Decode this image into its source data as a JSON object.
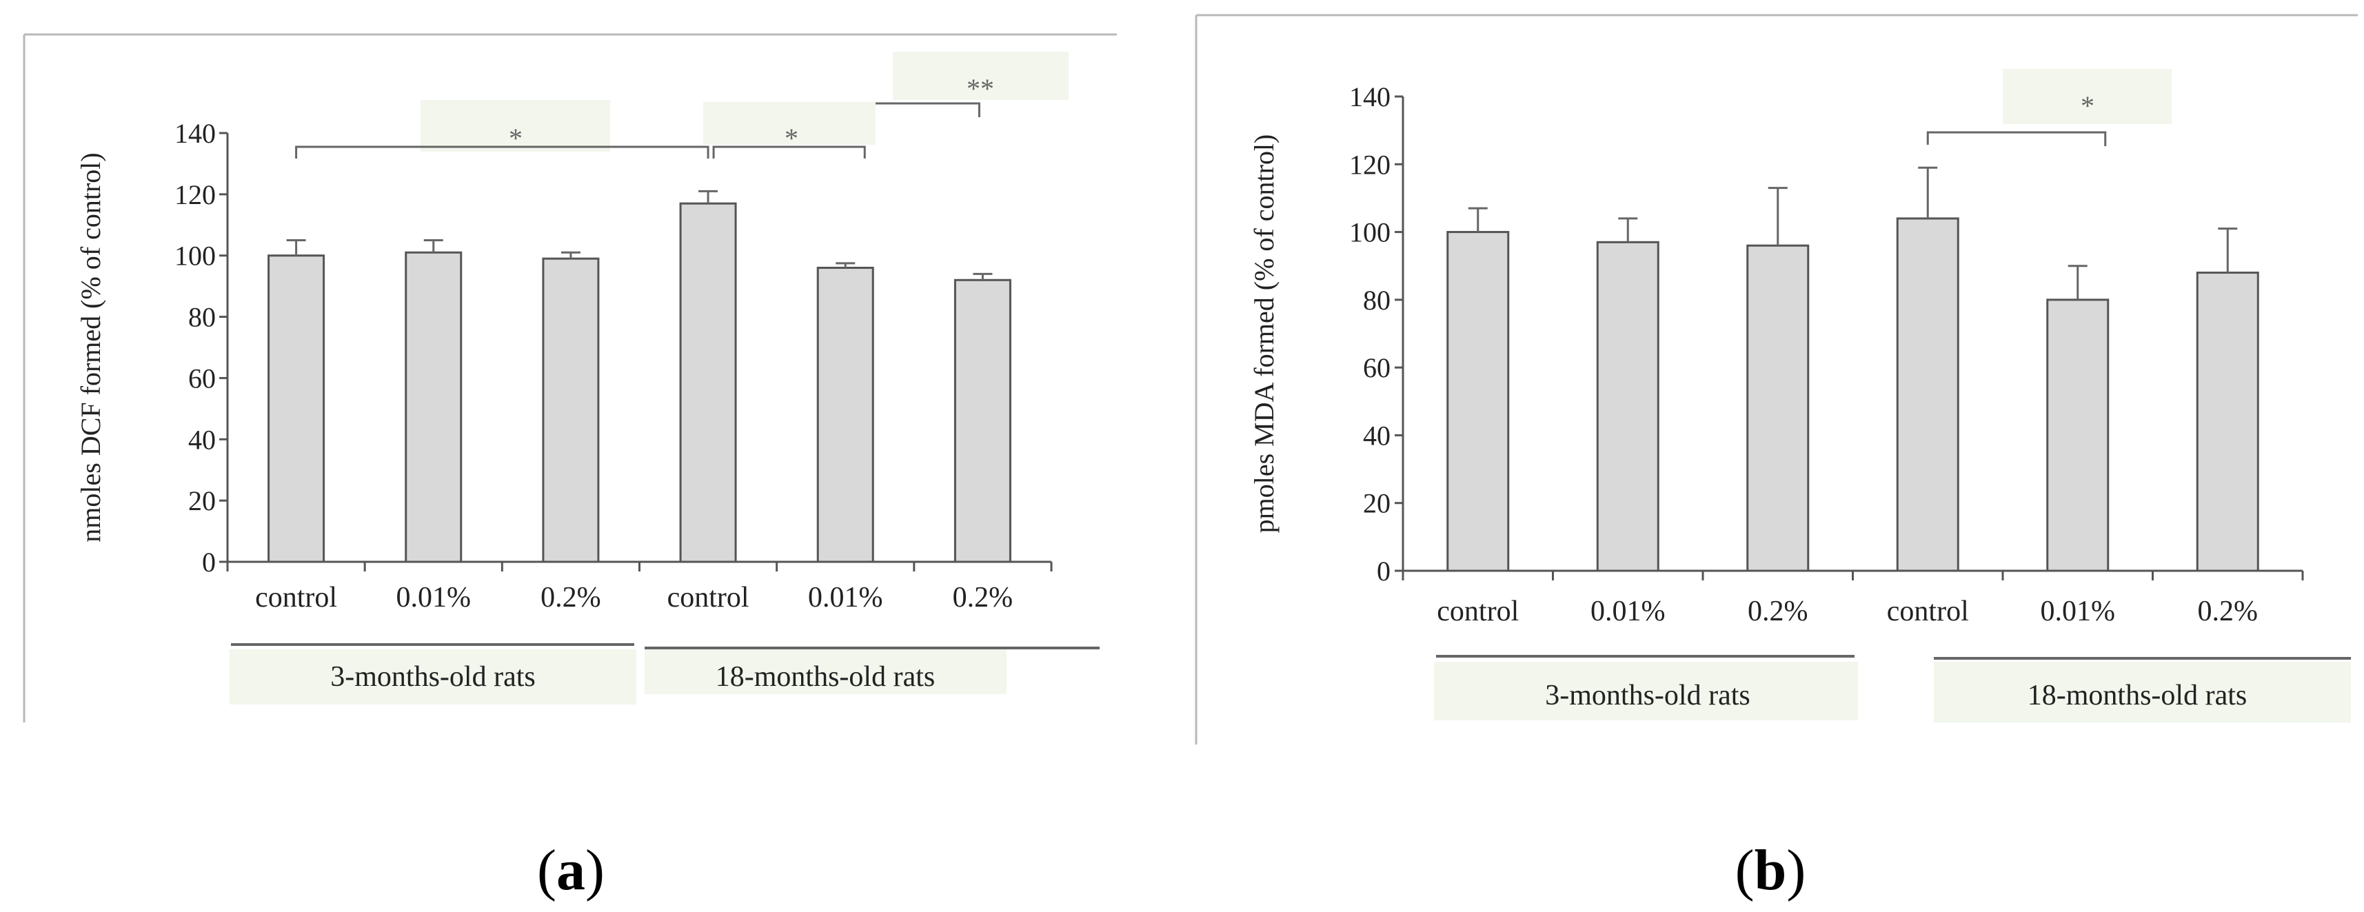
{
  "panel_labels": [
    "(a)",
    "(b)"
  ],
  "colors": {
    "bar_fill": "#d9d9d9",
    "bar_stroke": "#555555",
    "annotation_box": "#f2f6ec"
  },
  "chart_data": [
    {
      "type": "bar",
      "ylabel": "nmoles DCF formed (% of control)",
      "xlabel": "",
      "ylim": [
        0,
        140
      ],
      "yticks": [
        0,
        20,
        40,
        60,
        80,
        100,
        120,
        140
      ],
      "categories": [
        "control",
        "0.01%",
        "0.2%",
        "control",
        "0.01%",
        "0.2%"
      ],
      "values": [
        100,
        101,
        99,
        117,
        96,
        92
      ],
      "errors": [
        5,
        4,
        2,
        4,
        1.5,
        2
      ],
      "groups": [
        {
          "label": "3-months-old rats",
          "members": [
            0,
            1,
            2
          ]
        },
        {
          "label": "18-months-old rats",
          "members": [
            3,
            4,
            5
          ]
        }
      ],
      "significance": [
        {
          "from": 0,
          "to": 3,
          "label": "*"
        },
        {
          "from": 3,
          "to": 4,
          "label": "*"
        },
        {
          "from": 3,
          "to": 5,
          "label": "**"
        }
      ]
    },
    {
      "type": "bar",
      "ylabel": "pmoles MDA formed (% of control)",
      "xlabel": "",
      "ylim": [
        0,
        140
      ],
      "yticks": [
        0,
        20,
        40,
        60,
        80,
        100,
        120,
        140
      ],
      "categories": [
        "control",
        "0.01%",
        "0.2%",
        "control",
        "0.01%",
        "0.2%"
      ],
      "values": [
        100,
        97,
        96,
        104,
        80,
        88
      ],
      "errors": [
        7,
        7,
        17,
        15,
        10,
        13
      ],
      "groups": [
        {
          "label": "3-months-old rats",
          "members": [
            0,
            1,
            2
          ]
        },
        {
          "label": "18-months-old rats",
          "members": [
            3,
            4,
            5
          ]
        }
      ],
      "significance": [
        {
          "from": 3,
          "to": 4,
          "label": "*"
        }
      ]
    }
  ]
}
